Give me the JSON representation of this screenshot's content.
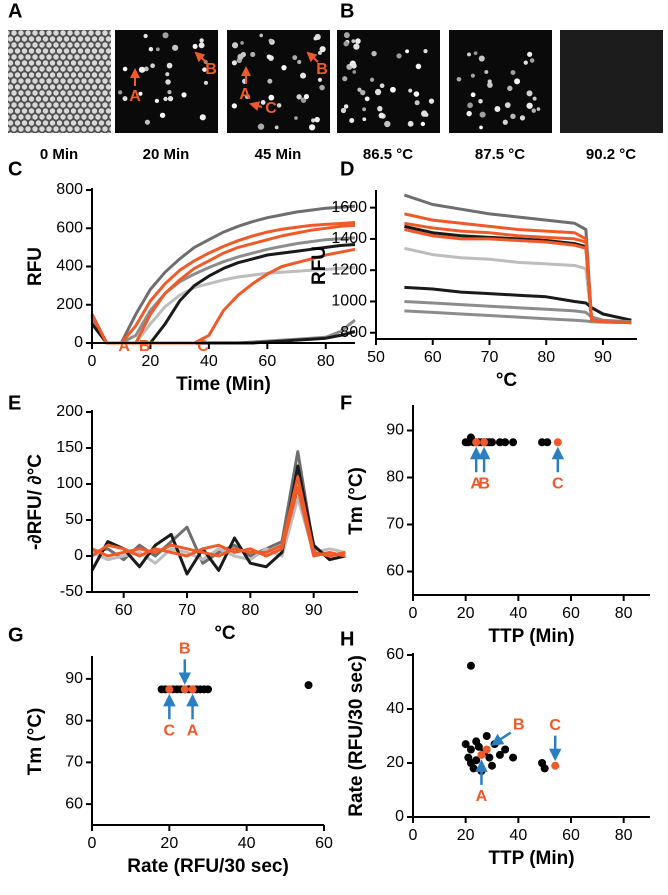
{
  "image_panels": [
    {
      "panel": "A",
      "images": [
        {
          "caption": "0 Min"
        },
        {
          "caption": "20 Min",
          "annotations": [
            "A",
            "B"
          ]
        },
        {
          "caption": "45 Min",
          "annotations": [
            "A",
            "B",
            "C"
          ]
        }
      ]
    },
    {
      "panel": "B",
      "images": [
        {
          "caption": "86.5 °C"
        },
        {
          "caption": "87.5 °C"
        },
        {
          "caption": "90.2 °C"
        }
      ]
    }
  ],
  "chart_data": [
    {
      "type": "line",
      "panel": "C",
      "xlabel": "Time (Min)",
      "ylabel": "RFU",
      "xlim": [
        0,
        90
      ],
      "xticks": [
        0,
        20,
        40,
        60,
        80
      ],
      "ylim": [
        0,
        800
      ],
      "yticks": [
        0,
        200,
        400,
        600,
        800
      ],
      "annotations": [
        "A",
        "B",
        "C"
      ],
      "x": [
        0,
        5,
        10,
        15,
        20,
        25,
        30,
        35,
        40,
        45,
        50,
        55,
        60,
        65,
        70,
        75,
        80,
        85,
        90
      ],
      "series": [
        {
          "color": "#6e6e6e",
          "values": [
            130,
            0,
            0,
            150,
            280,
            370,
            440,
            500,
            540,
            580,
            610,
            635,
            655,
            670,
            685,
            695,
            705,
            710,
            715
          ]
        },
        {
          "color": "#bdbdbd",
          "values": [
            120,
            0,
            0,
            0,
            100,
            190,
            250,
            290,
            310,
            330,
            345,
            355,
            365,
            370,
            375,
            380,
            385,
            390,
            395
          ]
        },
        {
          "color": "#1a1a1a",
          "values": [
            140,
            0,
            0,
            0,
            0,
            100,
            220,
            300,
            350,
            390,
            420,
            440,
            460,
            470,
            480,
            490,
            500,
            510,
            515
          ]
        },
        {
          "color": "#8c8c8c",
          "values": [
            130,
            0,
            0,
            40,
            170,
            260,
            320,
            360,
            395,
            425,
            450,
            470,
            490,
            505,
            520,
            530,
            540,
            545,
            550
          ]
        },
        {
          "color": "#8c8c8c",
          "values": [
            120,
            0,
            0,
            0,
            0,
            0,
            0,
            0,
            0,
            0,
            0,
            5,
            10,
            15,
            20,
            25,
            30,
            60,
            120
          ]
        },
        {
          "color": "#1a1a1a",
          "values": [
            100,
            0,
            0,
            0,
            0,
            0,
            0,
            0,
            0,
            0,
            0,
            0,
            5,
            10,
            15,
            20,
            25,
            40,
            60
          ]
        },
        {
          "color": "#f05a28",
          "values": [
            150,
            0,
            0,
            90,
            220,
            310,
            380,
            430,
            470,
            505,
            535,
            560,
            580,
            595,
            605,
            615,
            620,
            625,
            630
          ]
        },
        {
          "color": "#f05a28",
          "values": [
            150,
            0,
            0,
            0,
            150,
            260,
            330,
            390,
            430,
            470,
            500,
            520,
            540,
            560,
            575,
            590,
            600,
            610,
            615
          ]
        },
        {
          "color": "#f05a28",
          "values": [
            150,
            0,
            0,
            0,
            0,
            0,
            0,
            0,
            40,
            170,
            250,
            310,
            360,
            400,
            420,
            440,
            460,
            475,
            490
          ]
        }
      ]
    },
    {
      "type": "line",
      "panel": "D",
      "xlabel": "°C",
      "ylabel": "RFU",
      "xlim": [
        50,
        96
      ],
      "xticks": [
        50,
        60,
        70,
        80,
        90
      ],
      "ylim": [
        760,
        1700
      ],
      "yticks": [
        800,
        1000,
        1200,
        1400,
        1600
      ],
      "x": [
        55,
        60,
        65,
        70,
        75,
        80,
        85,
        87,
        88,
        90,
        95
      ],
      "series": [
        {
          "color": "#6e6e6e",
          "values": [
            1680,
            1620,
            1590,
            1560,
            1540,
            1520,
            1500,
            1460,
            880,
            870,
            865
          ]
        },
        {
          "color": "#bdbdbd",
          "values": [
            1340,
            1300,
            1280,
            1270,
            1250,
            1240,
            1230,
            1210,
            880,
            870,
            865
          ]
        },
        {
          "color": "#1a1a1a",
          "values": [
            1480,
            1440,
            1420,
            1410,
            1400,
            1390,
            1370,
            1350,
            880,
            870,
            865
          ]
        },
        {
          "color": "#1a1a1a",
          "values": [
            1090,
            1080,
            1060,
            1050,
            1040,
            1030,
            1000,
            990,
            960,
            920,
            880
          ]
        },
        {
          "color": "#8c8c8c",
          "values": [
            1000,
            990,
            980,
            970,
            960,
            950,
            940,
            930,
            900,
            880,
            870
          ]
        },
        {
          "color": "#8c8c8c",
          "values": [
            940,
            930,
            920,
            910,
            900,
            890,
            880,
            875,
            870,
            868,
            865
          ]
        },
        {
          "color": "#f05a28",
          "values": [
            1560,
            1520,
            1500,
            1480,
            1460,
            1450,
            1440,
            1400,
            880,
            870,
            865
          ]
        },
        {
          "color": "#f05a28",
          "values": [
            1500,
            1470,
            1450,
            1440,
            1420,
            1410,
            1400,
            1380,
            880,
            870,
            865
          ]
        },
        {
          "color": "#f05a28",
          "values": [
            1460,
            1420,
            1400,
            1400,
            1390,
            1380,
            1360,
            1340,
            880,
            870,
            865
          ]
        }
      ]
    },
    {
      "type": "line",
      "panel": "E",
      "xlabel": "°C",
      "ylabel": "-∂RFU/ ∂°C",
      "xlim": [
        55,
        97
      ],
      "xticks": [
        60,
        70,
        80,
        90
      ],
      "ylim": [
        -50,
        200
      ],
      "yticks": [
        -50,
        0,
        50,
        100,
        150,
        200
      ],
      "x": [
        55,
        57.5,
        60,
        62.5,
        65,
        67.5,
        70,
        72.5,
        75,
        77.5,
        80,
        82.5,
        85,
        87.5,
        90,
        92.5,
        95
      ],
      "series": [
        {
          "color": "#6e6e6e",
          "values": [
            5,
            10,
            -5,
            15,
            0,
            20,
            40,
            -10,
            5,
            15,
            0,
            10,
            20,
            145,
            10,
            0,
            5
          ]
        },
        {
          "color": "#bdbdbd",
          "values": [
            5,
            -5,
            0,
            5,
            -10,
            10,
            5,
            -5,
            10,
            0,
            -5,
            10,
            0,
            80,
            5,
            10,
            5
          ]
        },
        {
          "color": "#1a1a1a",
          "values": [
            -20,
            20,
            10,
            -15,
            15,
            30,
            -25,
            10,
            -20,
            25,
            -10,
            -15,
            5,
            125,
            15,
            -5,
            0
          ]
        },
        {
          "color": "#f05a28",
          "values": [
            10,
            0,
            5,
            10,
            5,
            15,
            10,
            5,
            0,
            10,
            5,
            5,
            15,
            110,
            5,
            0,
            5
          ]
        },
        {
          "color": "#f05a28",
          "values": [
            0,
            15,
            10,
            0,
            10,
            5,
            0,
            10,
            15,
            5,
            10,
            0,
            10,
            95,
            0,
            5,
            0
          ]
        }
      ]
    },
    {
      "type": "scatter",
      "panel": "F",
      "xlabel": "TTP (Min)",
      "ylabel": "Tm (°C)",
      "xlim": [
        0,
        90
      ],
      "xticks": [
        0,
        20,
        40,
        60,
        80
      ],
      "ylim": [
        55,
        95
      ],
      "yticks": [
        60,
        70,
        80,
        90
      ],
      "annotations": [
        "A",
        "B",
        "C"
      ],
      "series": [
        {
          "color": "#000000",
          "x": [
            20,
            21,
            22,
            23,
            24,
            25,
            26,
            27,
            28,
            29,
            30,
            33,
            35,
            38,
            49,
            51
          ],
          "values": [
            87.5,
            87.5,
            88.5,
            87.5,
            87.5,
            87.5,
            87.5,
            87.5,
            87.5,
            87.5,
            87.5,
            87.5,
            87.5,
            87.5,
            87.5,
            87.5
          ]
        },
        {
          "color": "#f05a28",
          "x": [
            24,
            27,
            55
          ],
          "values": [
            87.5,
            87.5,
            87.5
          ]
        }
      ]
    },
    {
      "type": "scatter",
      "panel": "G",
      "xlabel": "Rate (RFU/30 sec)",
      "ylabel": "Tm (°C)",
      "xlim": [
        0,
        60
      ],
      "xticks": [
        0,
        20,
        40,
        60
      ],
      "ylim": [
        55,
        95
      ],
      "yticks": [
        60,
        70,
        80,
        90
      ],
      "annotations": [
        "A",
        "B",
        "C"
      ],
      "series": [
        {
          "color": "#000000",
          "x": [
            18,
            19,
            20,
            21,
            22,
            23,
            24,
            25,
            26,
            27,
            28,
            29,
            30,
            56
          ],
          "values": [
            87.5,
            87.5,
            87.5,
            87.5,
            87.5,
            87.5,
            87.5,
            87.5,
            87.5,
            87.5,
            87.5,
            87.5,
            87.5,
            88.5
          ]
        },
        {
          "color": "#f05a28",
          "x": [
            26,
            24,
            20
          ],
          "values": [
            87.5,
            87.5,
            87.5
          ]
        }
      ]
    },
    {
      "type": "scatter",
      "panel": "H",
      "xlabel": "TTP (Min)",
      "ylabel": "Rate (RFU/30 sec)",
      "xlim": [
        0,
        90
      ],
      "xticks": [
        0,
        20,
        40,
        60,
        80
      ],
      "ylim": [
        0,
        60
      ],
      "yticks": [
        0,
        20,
        40,
        60
      ],
      "annotations": [
        "A",
        "B",
        "C"
      ],
      "series": [
        {
          "color": "#000000",
          "x": [
            20,
            21,
            22,
            22,
            23,
            24,
            24,
            25,
            26,
            27,
            28,
            29,
            30,
            31,
            33,
            35,
            38,
            22,
            49,
            50
          ],
          "values": [
            27,
            22,
            25,
            20,
            18,
            28,
            21,
            26,
            17,
            24,
            30,
            22,
            19,
            27,
            23,
            25,
            22,
            56,
            20,
            18
          ]
        },
        {
          "color": "#f05a28",
          "x": [
            26,
            28,
            54
          ],
          "values": [
            23,
            25,
            19
          ]
        }
      ]
    }
  ]
}
